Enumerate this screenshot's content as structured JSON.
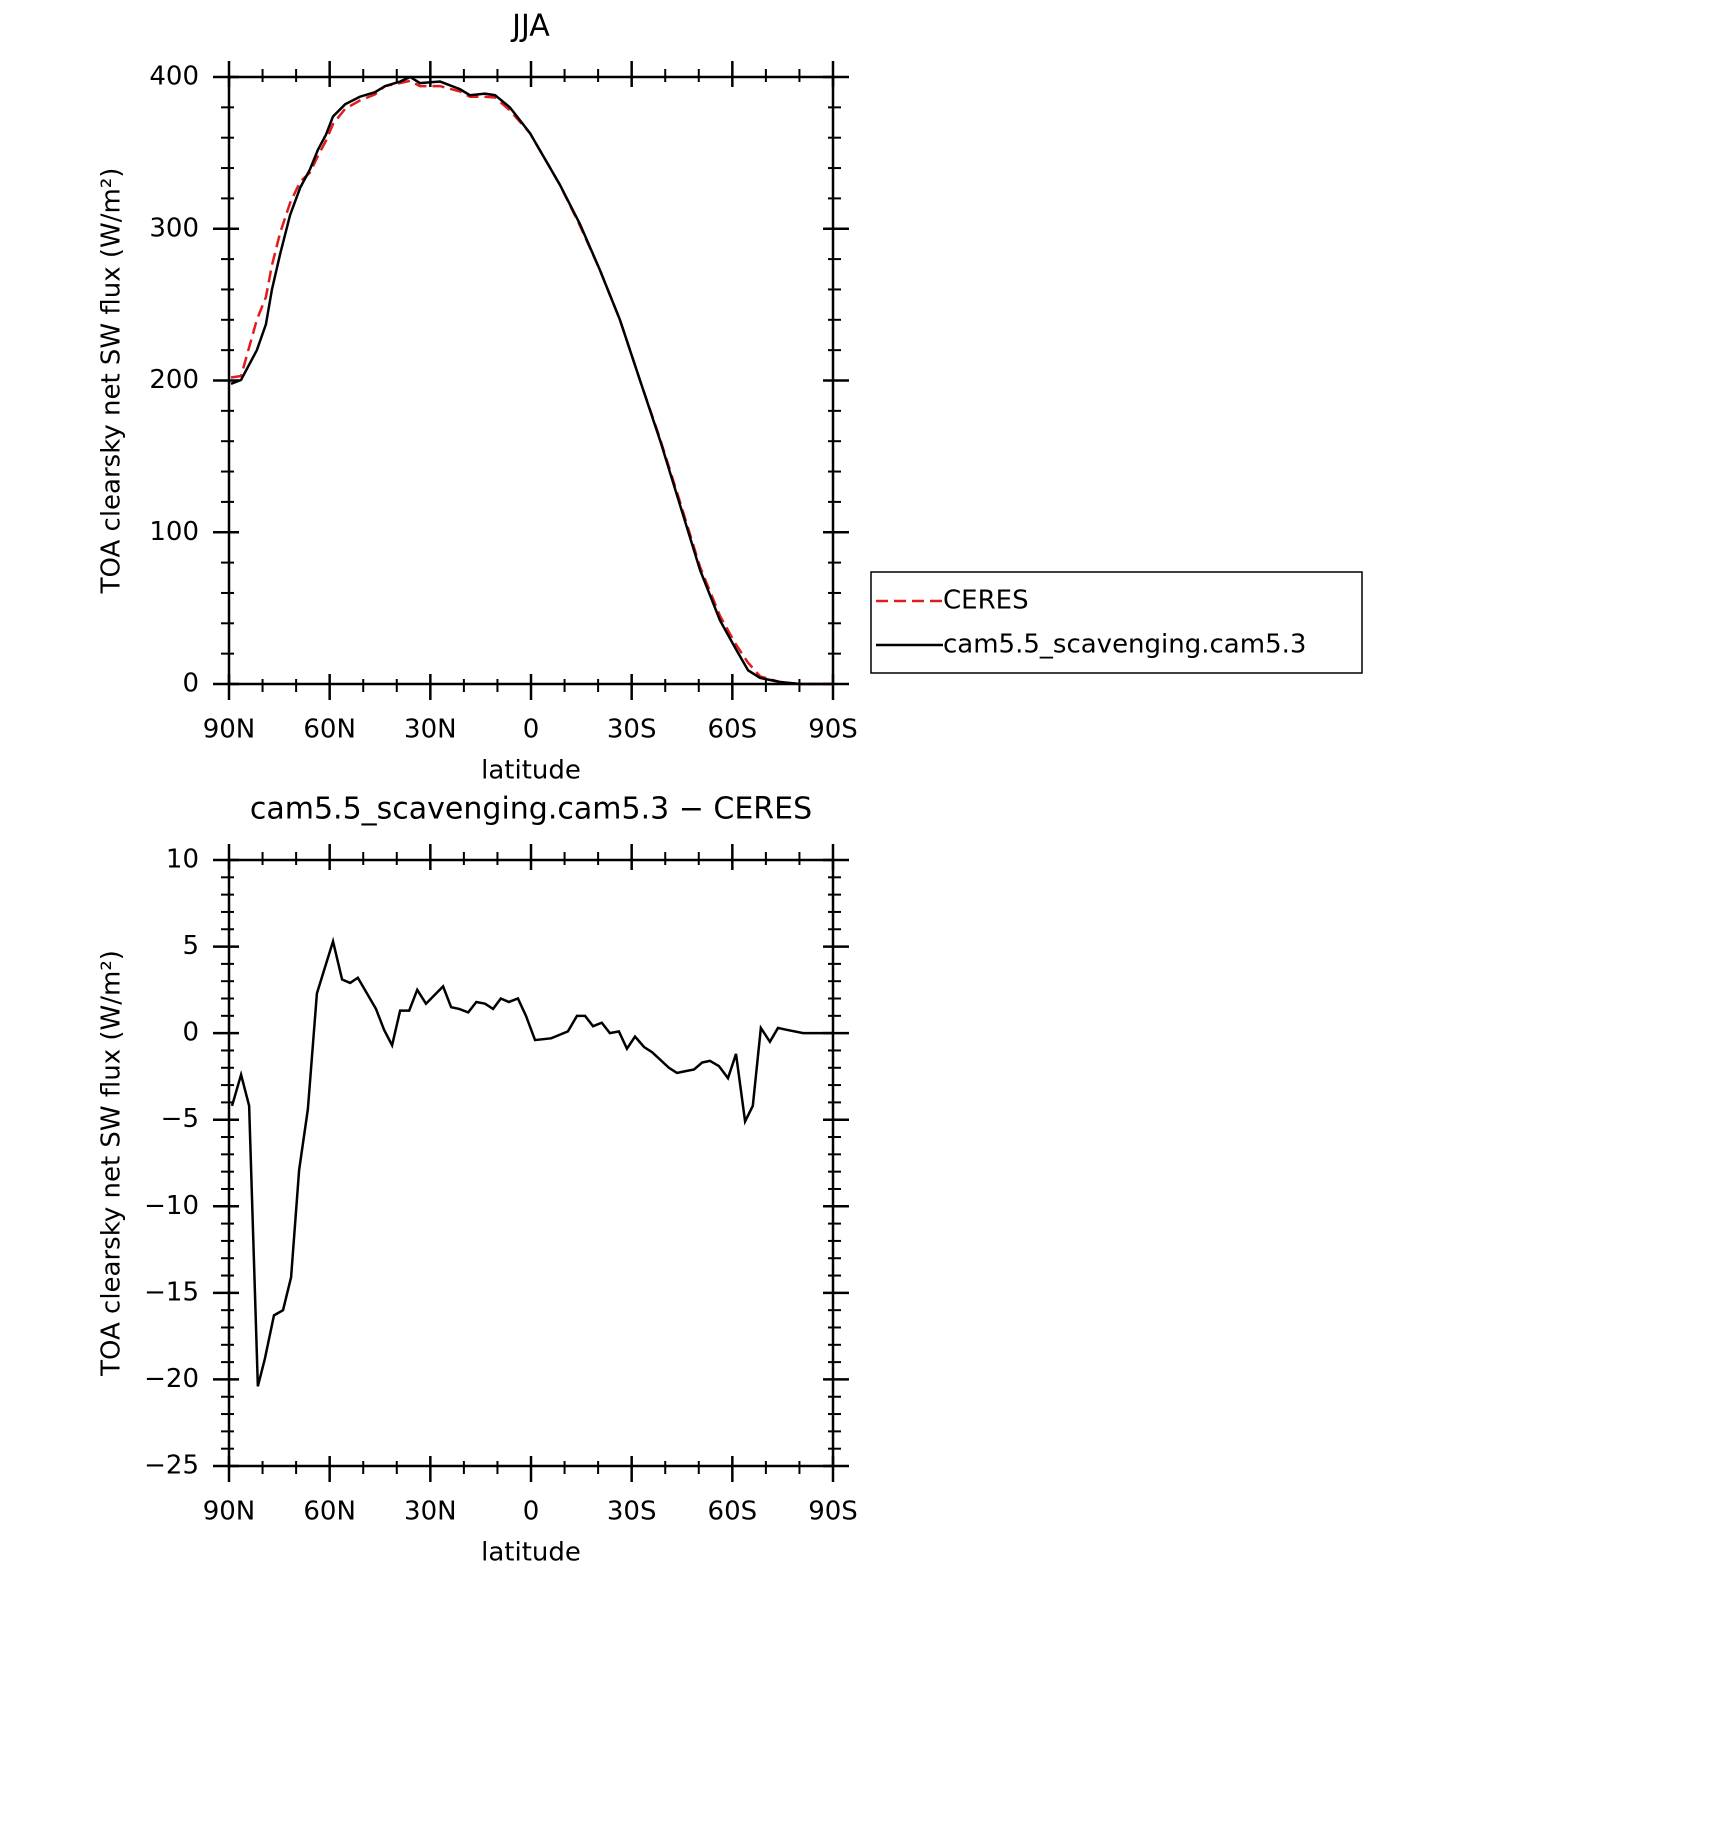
{
  "chart_data": [
    {
      "type": "line",
      "title": "JJA",
      "x_label": "latitude",
      "y_label": "TOA clearsky net SW flux (W/m²)",
      "xlim": [
        90,
        -90
      ],
      "xticks": [
        {
          "value": 90,
          "label": "90N"
        },
        {
          "value": 60,
          "label": "60N"
        },
        {
          "value": 30,
          "label": "30N"
        },
        0,
        {
          "value": -30,
          "label": "30S"
        },
        {
          "value": -60,
          "label": "60S"
        },
        {
          "value": -90,
          "label": "90S"
        }
      ],
      "ylim": [
        0,
        400
      ],
      "yticks": [
        0,
        100,
        200,
        300,
        400
      ],
      "x": [
        89.4,
        86.4,
        81.7,
        79,
        77.2,
        74.8,
        71.8,
        68.8,
        65.9,
        63.5,
        61.1,
        59,
        55.4,
        51,
        46.5,
        43.5,
        39,
        36,
        33.1,
        27.1,
        21.2,
        18.2,
        13.7,
        10.7,
        6.3,
        0.3,
        -8.6,
        -14.6,
        -20.5,
        -26.5,
        -32.5,
        -38.4,
        -44.4,
        -50.4,
        -56.3,
        -60.8,
        -64.7,
        -68.3,
        -74.2,
        -80.2,
        -90
      ],
      "series": [
        {
          "name": "CERES",
          "color": "#e41a1c",
          "dash": true,
          "values": [
            202,
            203,
            240,
            255,
            276,
            297,
            317,
            331,
            337,
            348,
            358,
            369,
            379,
            384.5,
            388.5,
            394,
            396,
            397.5,
            394,
            394,
            390.5,
            387,
            387,
            386.5,
            378,
            363,
            329,
            302,
            273,
            240,
            200,
            162,
            120,
            77,
            45,
            27,
            14,
            5,
            1.3,
            0,
            0
          ]
        },
        {
          "name": "cam5.5_scavenging.cam5.3",
          "color": "#000000",
          "dash": false,
          "values": [
            197.8,
            200.4,
            220,
            237,
            260,
            283,
            309,
            327,
            339,
            352,
            362,
            374,
            382,
            387,
            390,
            394,
            397,
            400,
            396,
            397,
            392,
            388,
            389,
            388,
            380,
            363,
            329,
            303,
            273,
            240,
            200,
            161,
            118,
            75,
            42,
            24,
            9,
            4,
            1.3,
            0,
            0
          ]
        }
      ],
      "legend": "right"
    },
    {
      "type": "line",
      "title": "cam5.5_scavenging.cam5.3 − CERES",
      "x_label": "latitude",
      "y_label": "TOA clearsky net SW flux (W/m²)",
      "xlim": [
        90,
        -90
      ],
      "xticks": [
        {
          "value": 90,
          "label": "90N"
        },
        {
          "value": 60,
          "label": "60N"
        },
        {
          "value": 30,
          "label": "30N"
        },
        0,
        {
          "value": -30,
          "label": "30S"
        },
        {
          "value": -60,
          "label": "60S"
        },
        {
          "value": -90,
          "label": "90S"
        }
      ],
      "ylim": [
        -25,
        10
      ],
      "yticks": [
        {
          "value": -25,
          "label": "−25"
        },
        {
          "value": -20,
          "label": "−20"
        },
        {
          "value": -15,
          "label": "−15"
        },
        {
          "value": -10,
          "label": "−10"
        },
        {
          "value": -5,
          "label": "−5"
        },
        0,
        5,
        10
      ],
      "x": [
        89.1,
        86.4,
        84,
        81.4,
        79.3,
        76.6,
        73.9,
        71.5,
        69.1,
        66.5,
        63.8,
        59,
        56.3,
        53.9,
        51.6,
        46.2,
        43.8,
        41.4,
        39,
        36.3,
        33.9,
        31.3,
        26.2,
        23.8,
        21.4,
        18.7,
        16.3,
        13.7,
        11.3,
        9,
        6.6,
        3.9,
        1.5,
        -1.2,
        -6,
        -11,
        -13.7,
        -16.1,
        -18.5,
        -21.1,
        -23.5,
        -26.2,
        -28.6,
        -31,
        -33.7,
        -36.1,
        -41.1,
        -43.5,
        -45.9,
        -48.6,
        -51,
        -53.3,
        -56,
        -58.7,
        -61.1,
        -63.8,
        -66.1,
        -68.5,
        -71.2,
        -73.6,
        -76,
        -81.1,
        -90
      ],
      "series": [
        {
          "color": "#000000",
          "dash": false,
          "values": [
            -4.2,
            -2.4,
            -4.2,
            -20.4,
            -18.8,
            -16.3,
            -16,
            -14.1,
            -7.9,
            -4.4,
            2.3,
            5.3,
            3.1,
            2.9,
            3.2,
            1.4,
            0.2,
            -0.7,
            1.3,
            1.3,
            2.5,
            1.7,
            2.7,
            1.5,
            1.4,
            1.2,
            1.8,
            1.7,
            1.4,
            2,
            1.8,
            2,
            1,
            -0.4,
            -0.3,
            0.1,
            1,
            1,
            0.4,
            0.6,
            0,
            0.1,
            -0.9,
            -0.2,
            -0.8,
            -1.1,
            -2,
            -2.3,
            -2.2,
            -2.1,
            -1.7,
            -1.6,
            -1.9,
            -2.6,
            -1.2,
            -5.1,
            -4.2,
            0.3,
            -0.5,
            0.3,
            0.2,
            0,
            0
          ]
        }
      ]
    }
  ]
}
